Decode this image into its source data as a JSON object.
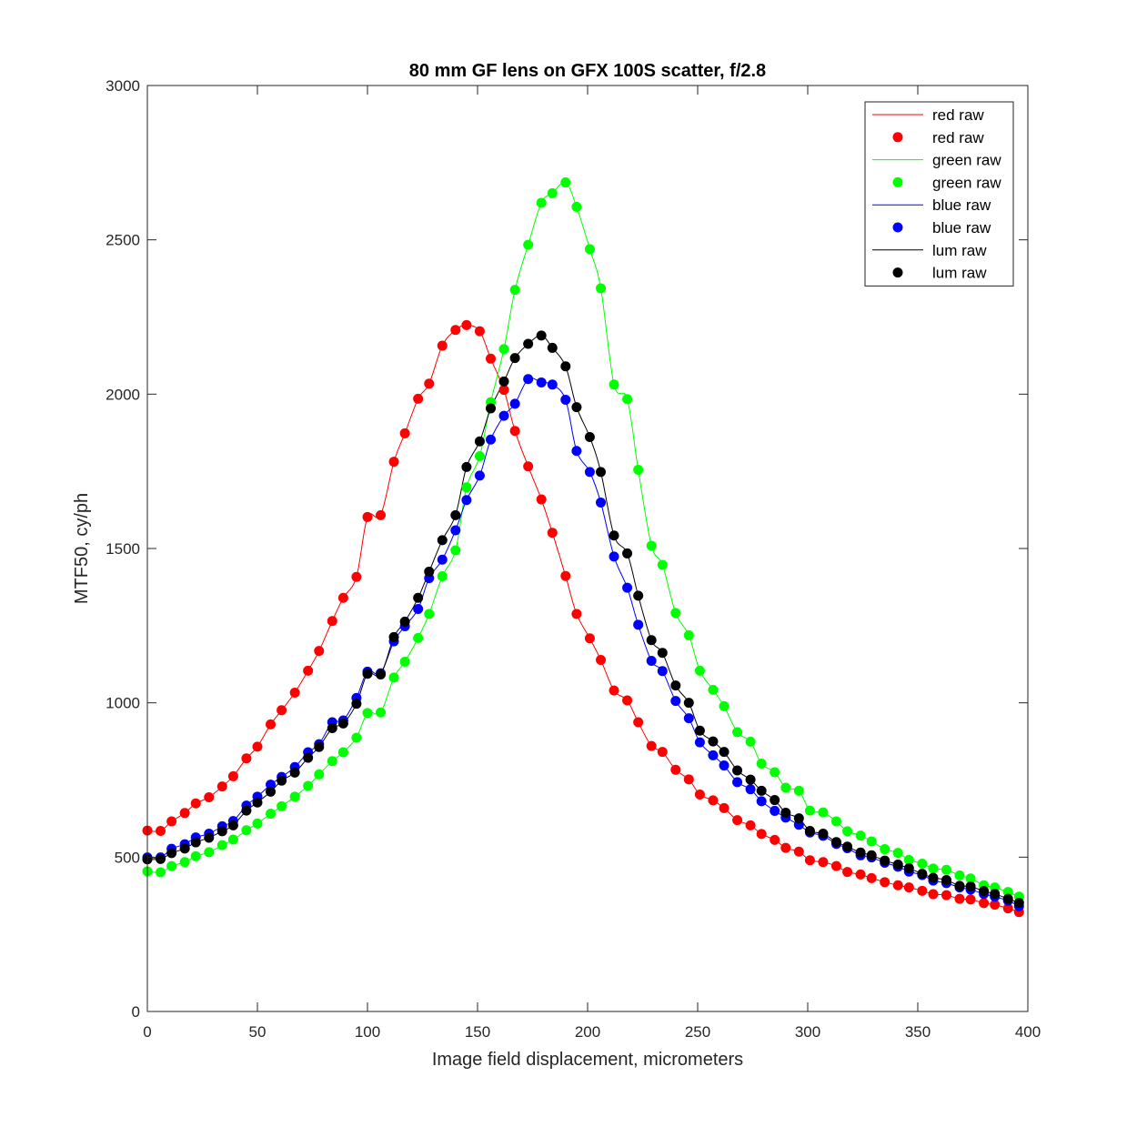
{
  "chart_data": {
    "type": "scatter",
    "title": "80 mm GF lens on GFX 100S scatter, f/2.8",
    "xlabel": "Image field displacement, micrometers",
    "ylabel": "MTF50, cy/ph",
    "xlim": [
      0,
      400
    ],
    "ylim": [
      0,
      3000
    ],
    "xticks": [
      0,
      50,
      100,
      150,
      200,
      250,
      300,
      350,
      400
    ],
    "yticks": [
      0,
      500,
      1000,
      1500,
      2000,
      2500,
      3000
    ],
    "grid": false,
    "legend_position": "top-right",
    "legend": [
      "red raw",
      "red raw",
      "green raw",
      "green raw",
      "blue raw",
      "blue raw",
      "lum raw",
      "lum raw"
    ],
    "x": [
      0,
      6,
      11,
      17,
      22,
      28,
      34,
      39,
      45,
      50,
      56,
      61,
      67,
      73,
      78,
      84,
      89,
      95,
      100,
      106,
      112,
      117,
      123,
      128,
      134,
      140,
      145,
      151,
      156,
      162,
      167,
      173,
      179,
      184,
      190,
      195,
      201,
      206,
      212,
      218,
      223,
      229,
      234,
      240,
      246,
      251,
      257,
      262,
      268,
      274,
      279,
      285,
      290,
      296,
      301,
      307,
      313,
      318,
      324,
      329,
      335,
      341,
      346,
      352,
      357,
      363,
      369,
      374,
      380,
      385,
      391,
      396
    ],
    "series": [
      {
        "name": "red raw",
        "color": "#ff0000",
        "values": [
          586,
          585,
          616,
          643,
          674,
          694,
          729,
          762,
          820,
          858,
          930,
          976,
          1033,
          1104,
          1168,
          1265,
          1340,
          1408,
          1602,
          1608,
          1781,
          1873,
          1985,
          2034,
          2157,
          2208,
          2224,
          2204,
          2115,
          2014,
          1881,
          1766,
          1659,
          1551,
          1411,
          1288,
          1209,
          1139,
          1040,
          1008,
          937,
          860,
          841,
          783,
          752,
          703,
          684,
          659,
          620,
          603,
          575,
          556,
          530,
          518,
          490,
          484,
          471,
          452,
          444,
          432,
          419,
          409,
          402,
          391,
          380,
          377,
          365,
          363,
          351,
          346,
          334,
          322
        ]
      },
      {
        "name": "green raw",
        "color": "#00ff00",
        "values": [
          454,
          451,
          471,
          484,
          503,
          516,
          539,
          557,
          587,
          609,
          641,
          665,
          696,
          731,
          768,
          811,
          840,
          887,
          967,
          969,
          1082,
          1133,
          1210,
          1288,
          1410,
          1494,
          1698,
          1799,
          1974,
          2146,
          2338,
          2484,
          2620,
          2651,
          2686,
          2607,
          2470,
          2343,
          2031,
          1984,
          1755,
          1509,
          1447,
          1291,
          1219,
          1104,
          1042,
          989,
          905,
          874,
          803,
          775,
          725,
          715,
          651,
          645,
          616,
          584,
          570,
          551,
          526,
          514,
          491,
          479,
          463,
          459,
          441,
          431,
          409,
          402,
          387,
          372
        ]
      },
      {
        "name": "blue raw",
        "color": "#0000ff",
        "values": [
          499,
          499,
          527,
          542,
          564,
          576,
          600,
          617,
          667,
          696,
          735,
          760,
          792,
          840,
          866,
          937,
          943,
          1016,
          1101,
          1096,
          1199,
          1248,
          1304,
          1404,
          1464,
          1559,
          1657,
          1736,
          1853,
          1930,
          1969,
          2049,
          2038,
          2031,
          1982,
          1816,
          1748,
          1649,
          1474,
          1373,
          1253,
          1136,
          1103,
          1006,
          950,
          872,
          830,
          797,
          743,
          720,
          681,
          650,
          628,
          605,
          580,
          569,
          543,
          529,
          506,
          499,
          482,
          469,
          453,
          442,
          424,
          416,
          402,
          395,
          381,
          372,
          359,
          341
        ]
      },
      {
        "name": "lum raw",
        "color": "#000000",
        "values": [
          493,
          494,
          513,
          528,
          548,
          563,
          584,
          603,
          651,
          677,
          712,
          748,
          774,
          822,
          857,
          918,
          933,
          997,
          1094,
          1092,
          1213,
          1263,
          1340,
          1425,
          1527,
          1608,
          1764,
          1847,
          1954,
          2041,
          2117,
          2163,
          2190,
          2150,
          2090,
          1958,
          1861,
          1748,
          1542,
          1484,
          1347,
          1203,
          1162,
          1056,
          1000,
          910,
          875,
          841,
          781,
          751,
          715,
          685,
          644,
          626,
          585,
          576,
          549,
          534,
          515,
          506,
          489,
          476,
          464,
          446,
          433,
          426,
          407,
          405,
          390,
          381,
          365,
          352
        ]
      }
    ]
  }
}
